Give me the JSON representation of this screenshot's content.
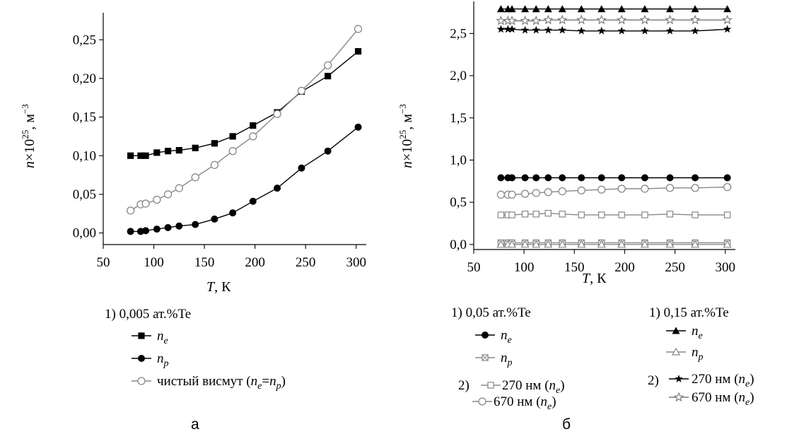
{
  "chart_data": [
    {
      "type": "line",
      "panel_label": "а",
      "xlabel": "T, К",
      "ylabel": "n×10^25, м^−3",
      "xlim": [
        50,
        310
      ],
      "ylim": [
        -0.015,
        0.285
      ],
      "x_ticks": [
        "50",
        "100",
        "150",
        "200",
        "250",
        "300"
      ],
      "y_ticks": [
        "0,00",
        "0,05",
        "0,10",
        "0,15",
        "0,20",
        "0,25"
      ],
      "legend_header": "1) 0,005 ат.%Te",
      "series": [
        {
          "name": "n_e",
          "marker": "square-filled",
          "color": "#000000",
          "points": [
            [
              77,
              0.1
            ],
            [
              87,
              0.1
            ],
            [
              92,
              0.1
            ],
            [
              103,
              0.104
            ],
            [
              114,
              0.106
            ],
            [
              125,
              0.107
            ],
            [
              141,
              0.11
            ],
            [
              160,
              0.116
            ],
            [
              178,
              0.125
            ],
            [
              198,
              0.139
            ],
            [
              222,
              0.156
            ],
            [
              246,
              0.183
            ],
            [
              272,
              0.203
            ],
            [
              302,
              0.235
            ]
          ]
        },
        {
          "name": "n_p",
          "marker": "circle-filled",
          "color": "#000000",
          "points": [
            [
              77,
              0.002
            ],
            [
              87,
              0.002
            ],
            [
              92,
              0.003
            ],
            [
              103,
              0.005
            ],
            [
              114,
              0.007
            ],
            [
              125,
              0.009
            ],
            [
              141,
              0.011
            ],
            [
              160,
              0.018
            ],
            [
              178,
              0.026
            ],
            [
              198,
              0.041
            ],
            [
              222,
              0.058
            ],
            [
              246,
              0.084
            ],
            [
              272,
              0.106
            ],
            [
              302,
              0.137
            ]
          ]
        },
        {
          "name": "чистый висмут (n_e=n_p)",
          "marker": "circle-open",
          "color": "#888888",
          "points": [
            [
              77,
              0.029
            ],
            [
              87,
              0.037
            ],
            [
              92,
              0.038
            ],
            [
              103,
              0.043
            ],
            [
              114,
              0.05
            ],
            [
              125,
              0.058
            ],
            [
              141,
              0.072
            ],
            [
              160,
              0.088
            ],
            [
              178,
              0.106
            ],
            [
              198,
              0.125
            ],
            [
              222,
              0.154
            ],
            [
              246,
              0.184
            ],
            [
              272,
              0.217
            ],
            [
              302,
              0.264
            ]
          ]
        }
      ]
    },
    {
      "type": "line",
      "panel_label": "б",
      "xlabel": "T, К",
      "ylabel": "n×10^25, м^−3",
      "xlim": [
        50,
        310
      ],
      "ylim": [
        -0.06,
        2.88
      ],
      "x_ticks": [
        "50",
        "100",
        "150",
        "200",
        "250",
        "300"
      ],
      "y_ticks": [
        "0,0",
        "0,5",
        "1,0",
        "1,5",
        "2,0",
        "2,5"
      ],
      "legend_header_1": "1) 0,05 ат.%Te",
      "legend_header_2": "1) 0,15 ат.%Te",
      "series": [
        {
          "name": "n_e (0,15 ат.%Te)",
          "marker": "triangle-filled",
          "color": "#000000",
          "points": [
            [
              77,
              2.79
            ],
            [
              84,
              2.79
            ],
            [
              88,
              2.79
            ],
            [
              101,
              2.79
            ],
            [
              112,
              2.79
            ],
            [
              124,
              2.79
            ],
            [
              138,
              2.79
            ],
            [
              157,
              2.79
            ],
            [
              177,
              2.79
            ],
            [
              197,
              2.79
            ],
            [
              220,
              2.79
            ],
            [
              245,
              2.79
            ],
            [
              270,
              2.79
            ],
            [
              302,
              2.79
            ]
          ]
        },
        {
          "name": "670 нм (n_e) (0,15 ат.%Te)",
          "marker": "star-open",
          "color": "#777777",
          "points": [
            [
              77,
              2.65
            ],
            [
              84,
              2.65
            ],
            [
              88,
              2.65
            ],
            [
              101,
              2.65
            ],
            [
              112,
              2.65
            ],
            [
              124,
              2.66
            ],
            [
              138,
              2.66
            ],
            [
              157,
              2.66
            ],
            [
              177,
              2.66
            ],
            [
              197,
              2.66
            ],
            [
              220,
              2.66
            ],
            [
              245,
              2.66
            ],
            [
              270,
              2.66
            ],
            [
              302,
              2.66
            ]
          ]
        },
        {
          "name": "270 нм (n_e) (0,15 ат.%Te)",
          "marker": "star-filled",
          "color": "#000000",
          "points": [
            [
              77,
              2.55
            ],
            [
              84,
              2.55
            ],
            [
              88,
              2.55
            ],
            [
              101,
              2.54
            ],
            [
              112,
              2.54
            ],
            [
              124,
              2.54
            ],
            [
              138,
              2.54
            ],
            [
              157,
              2.53
            ],
            [
              177,
              2.53
            ],
            [
              197,
              2.53
            ],
            [
              220,
              2.53
            ],
            [
              245,
              2.53
            ],
            [
              270,
              2.53
            ],
            [
              302,
              2.55
            ]
          ]
        },
        {
          "name": "n_e (0,05 ат.%Te)",
          "marker": "circle-filled",
          "color": "#000000",
          "points": [
            [
              77,
              0.79
            ],
            [
              84,
              0.79
            ],
            [
              88,
              0.79
            ],
            [
              101,
              0.79
            ],
            [
              112,
              0.79
            ],
            [
              124,
              0.79
            ],
            [
              138,
              0.79
            ],
            [
              157,
              0.79
            ],
            [
              177,
              0.79
            ],
            [
              197,
              0.79
            ],
            [
              220,
              0.79
            ],
            [
              245,
              0.79
            ],
            [
              270,
              0.79
            ],
            [
              302,
              0.79
            ]
          ]
        },
        {
          "name": "670 нм (n_e) (0,05 ат.%Te)",
          "marker": "circle-open",
          "color": "#888888",
          "points": [
            [
              77,
              0.59
            ],
            [
              84,
              0.59
            ],
            [
              88,
              0.59
            ],
            [
              101,
              0.6
            ],
            [
              112,
              0.61
            ],
            [
              124,
              0.62
            ],
            [
              138,
              0.63
            ],
            [
              157,
              0.64
            ],
            [
              177,
              0.65
            ],
            [
              197,
              0.66
            ],
            [
              220,
              0.66
            ],
            [
              245,
              0.67
            ],
            [
              270,
              0.67
            ],
            [
              302,
              0.68
            ]
          ]
        },
        {
          "name": "270 нм (n_e) (0,05 ат.%Te)",
          "marker": "square-open",
          "color": "#888888",
          "points": [
            [
              77,
              0.35
            ],
            [
              84,
              0.35
            ],
            [
              88,
              0.35
            ],
            [
              101,
              0.36
            ],
            [
              112,
              0.36
            ],
            [
              124,
              0.37
            ],
            [
              138,
              0.36
            ],
            [
              157,
              0.35
            ],
            [
              177,
              0.35
            ],
            [
              197,
              0.35
            ],
            [
              220,
              0.35
            ],
            [
              245,
              0.36
            ],
            [
              270,
              0.35
            ],
            [
              302,
              0.35
            ]
          ]
        },
        {
          "name": "n_p (0,05 ат.%Te)",
          "marker": "square-x",
          "color": "#888888",
          "points": [
            [
              77,
              0.02
            ],
            [
              84,
              0.02
            ],
            [
              88,
              0.02
            ],
            [
              101,
              0.02
            ],
            [
              112,
              0.02
            ],
            [
              124,
              0.02
            ],
            [
              138,
              0.02
            ],
            [
              157,
              0.02
            ],
            [
              177,
              0.02
            ],
            [
              197,
              0.02
            ],
            [
              220,
              0.02
            ],
            [
              245,
              0.02
            ],
            [
              270,
              0.02
            ],
            [
              302,
              0.02
            ]
          ]
        },
        {
          "name": "n_p (0,15 ат.%Te)",
          "marker": "triangle-open",
          "color": "#888888",
          "points": [
            [
              77,
              0.0
            ],
            [
              84,
              0.0
            ],
            [
              88,
              0.0
            ],
            [
              101,
              0.0
            ],
            [
              112,
              0.0
            ],
            [
              124,
              0.0
            ],
            [
              138,
              0.0
            ],
            [
              157,
              0.0
            ],
            [
              177,
              0.0
            ],
            [
              197,
              0.0
            ],
            [
              220,
              0.0
            ],
            [
              245,
              0.0
            ],
            [
              270,
              0.0
            ],
            [
              302,
              0.0
            ]
          ]
        }
      ]
    }
  ],
  "legend_a": {
    "header": "1) 0,005 ат.%Te",
    "items": [
      {
        "marker": "square-filled",
        "color": "#000000",
        "sym": "n",
        "sub": "e",
        "after": ""
      },
      {
        "marker": "circle-filled",
        "color": "#000000",
        "sym": "n",
        "sub": "p",
        "after": ""
      },
      {
        "marker": "circle-open",
        "color": "#888888",
        "prefix": "чистый висмут (",
        "sym": "n",
        "sub": "e",
        "mid": "=",
        "sym2": "n",
        "sub2": "p",
        "after": ")"
      }
    ]
  },
  "legend_b1": {
    "header": "1) 0,05 ат.%Te",
    "items": [
      {
        "marker": "circle-filled",
        "color": "#000000",
        "sym": "n",
        "sub": "e"
      },
      {
        "marker": "square-x",
        "color": "#888888",
        "sym": "n",
        "sub": "p"
      }
    ],
    "group2_label": "2)",
    "items2": [
      {
        "marker": "square-open",
        "color": "#888888",
        "text": "270 нм (",
        "sym": "n",
        "sub": "e",
        "after": ")"
      },
      {
        "marker": "circle-open",
        "color": "#888888",
        "text": "670 нм (",
        "sym": "n",
        "sub": "e",
        "after": ")"
      }
    ]
  },
  "legend_b2": {
    "header": "1) 0,15 ат.%Te",
    "items": [
      {
        "marker": "triangle-filled",
        "color": "#000000",
        "sym": "n",
        "sub": "e"
      },
      {
        "marker": "triangle-open",
        "color": "#888888",
        "sym": "n",
        "sub": "p"
      }
    ],
    "group2_label": "2)",
    "items2": [
      {
        "marker": "star-filled",
        "color": "#000000",
        "text": "270 нм (",
        "sym": "n",
        "sub": "e",
        "after": ")"
      },
      {
        "marker": "star-open",
        "color": "#777777",
        "text": "670 нм (",
        "sym": "n",
        "sub": "e",
        "after": ")"
      }
    ]
  }
}
